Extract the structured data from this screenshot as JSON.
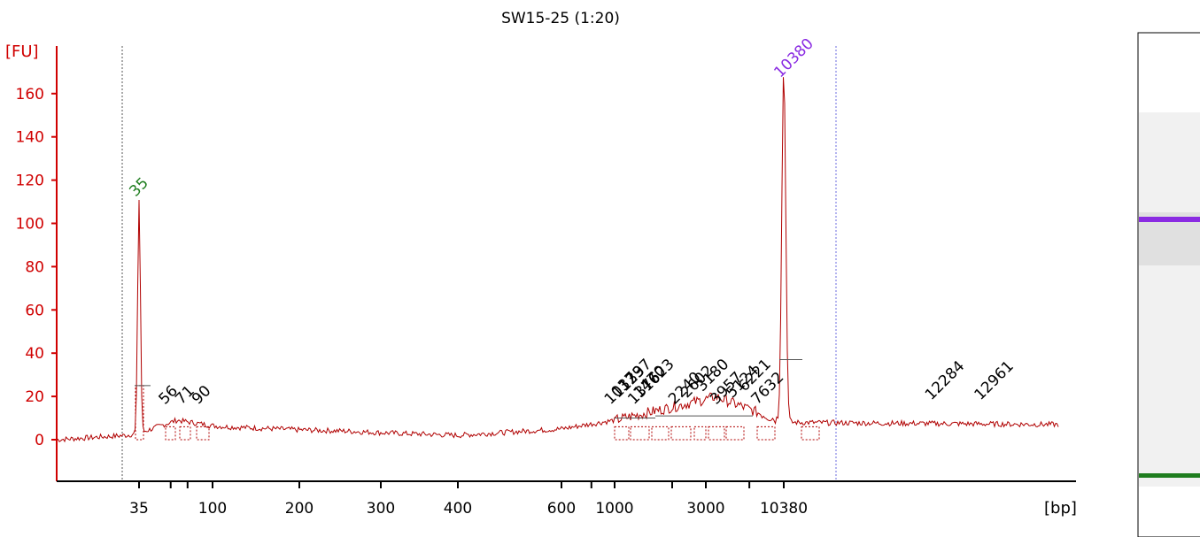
{
  "chart_data": {
    "type": "line",
    "title": "SW15-25 (1:20)",
    "ylabel": "[FU]",
    "xlabel": "[bp]",
    "ylim": [
      -17,
      180
    ],
    "y_ticks": [
      0,
      20,
      40,
      60,
      80,
      100,
      120,
      140,
      160
    ],
    "x_tick_labels": [
      "35",
      "100",
      "200",
      "300",
      "400",
      "600",
      "1000",
      "3000",
      "10380"
    ],
    "colors": {
      "axis": "#d00000",
      "trace": "#b00000",
      "lower_marker": "#1e7d1e",
      "upper_marker": "#8a2be2",
      "fragment_labels": "#000000"
    },
    "markers": [
      {
        "label": "35",
        "size_bp": 35,
        "fu": 108,
        "color": "#1e7d1e"
      },
      {
        "label": "10380",
        "size_bp": 10380,
        "fu": 163,
        "color": "#8a2be2"
      }
    ],
    "fragment_peaks": [
      {
        "label": "56",
        "size_bp": 56
      },
      {
        "label": "71",
        "size_bp": 71
      },
      {
        "label": "90",
        "size_bp": 90
      },
      {
        "label": "1037",
        "size_bp": 1037
      },
      {
        "label": "1139",
        "size_bp": 1139
      },
      {
        "label": "1237",
        "size_bp": 1237
      },
      {
        "label": "1376",
        "size_bp": 1376
      },
      {
        "label": "1470",
        "size_bp": 1470
      },
      {
        "label": "1623",
        "size_bp": 1623
      },
      {
        "label": "2240",
        "size_bp": 2240
      },
      {
        "label": "2602",
        "size_bp": 2602
      },
      {
        "label": "3180",
        "size_bp": 3180
      },
      {
        "label": "3957",
        "size_bp": 3957
      },
      {
        "label": "5124",
        "size_bp": 5124
      },
      {
        "label": "6221",
        "size_bp": 6221
      },
      {
        "label": "7632",
        "size_bp": 7632
      },
      {
        "label": "12284",
        "size_bp": 12284
      },
      {
        "label": "12961",
        "size_bp": 12961
      }
    ],
    "trace": {
      "baseline_fu": [
        0,
        2,
        9,
        6,
        4,
        2,
        5,
        9,
        17,
        20,
        8,
        7
      ],
      "baseline_bp": [
        20,
        32,
        60,
        110,
        250,
        400,
        600,
        1000,
        2500,
        3500,
        10380,
        14000
      ]
    },
    "gel": {
      "bands": [
        {
          "name": "upper marker",
          "color": "#8a2be2"
        },
        {
          "name": "lower marker",
          "color": "#1e7d1e"
        }
      ]
    }
  }
}
